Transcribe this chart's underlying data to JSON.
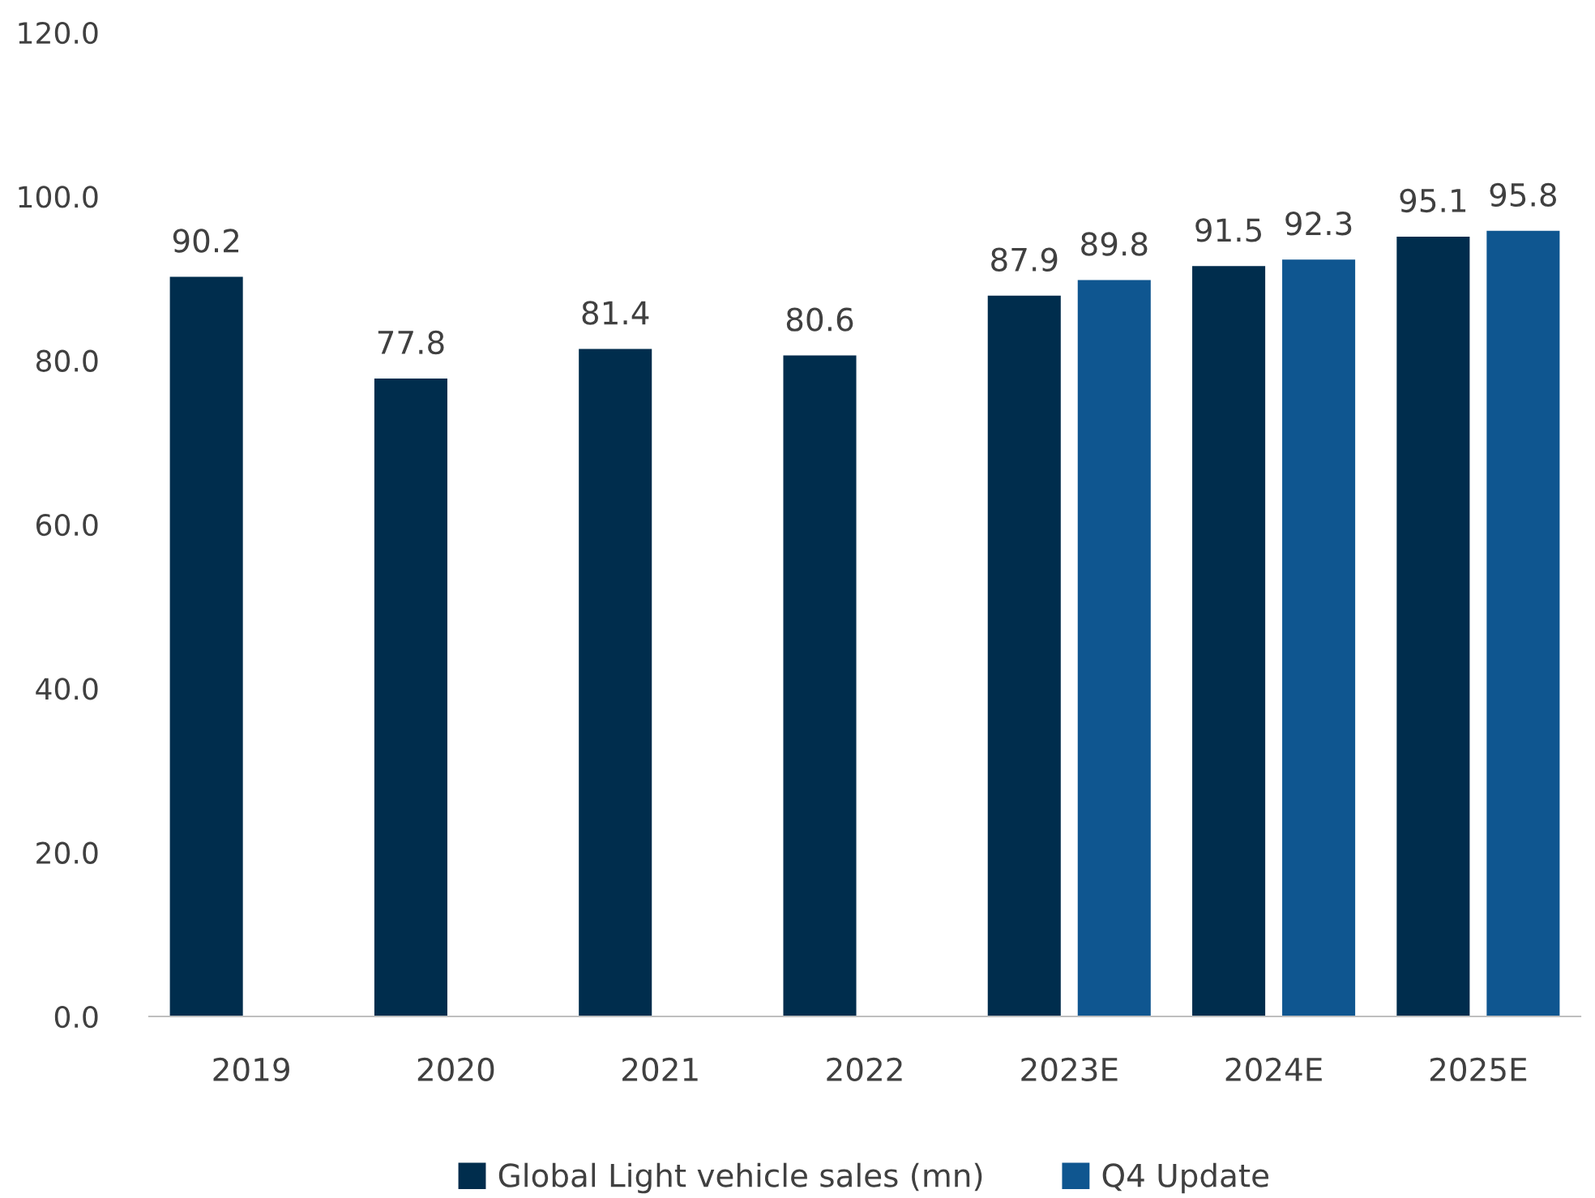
{
  "chart_data": {
    "type": "bar",
    "categories": [
      "2019",
      "2020",
      "2021",
      "2022",
      "2023E",
      "2024E",
      "2025E"
    ],
    "series": [
      {
        "name": "Global Light vehicle sales (mn)",
        "color": "#002d4d",
        "values": [
          90.2,
          77.8,
          81.4,
          80.6,
          87.9,
          91.5,
          95.1
        ]
      },
      {
        "name": "Q4 Update",
        "color": "#0f5690",
        "values": [
          null,
          null,
          null,
          null,
          89.8,
          92.3,
          95.8
        ]
      }
    ],
    "ylim": [
      0,
      120
    ],
    "yticks": [
      {
        "value": 0,
        "label": "0.0"
      },
      {
        "value": 20,
        "label": "20.0"
      },
      {
        "value": 40,
        "label": "40.0"
      },
      {
        "value": 60,
        "label": "60.0"
      },
      {
        "value": 80,
        "label": "80.0"
      },
      {
        "value": 100,
        "label": "100.0"
      },
      {
        "value": 120,
        "label": "120.0"
      }
    ],
    "data_labels": true,
    "legend": "bottom",
    "grid": false
  }
}
